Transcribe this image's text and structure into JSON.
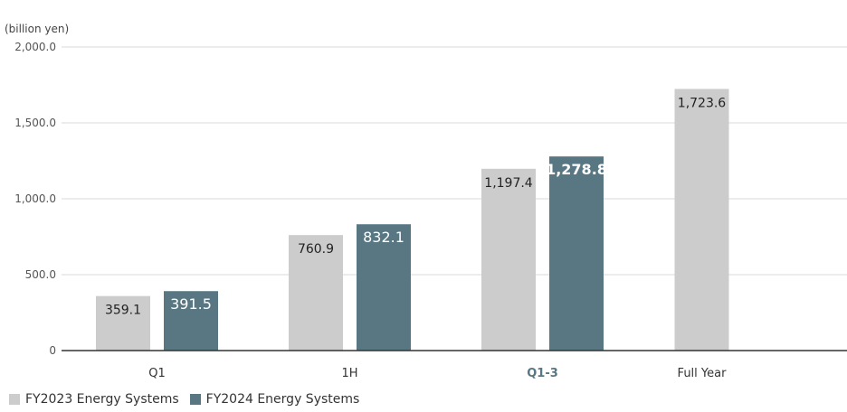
{
  "unit_label": "(billion yen)",
  "colors": {
    "fy2023": "#cccccc",
    "fy2024": "#587782",
    "highlight_text": "#587782",
    "grid": "#d9d9d9",
    "axis": "#333333"
  },
  "legend": [
    {
      "label": "FY2023 Energy Systems",
      "color": "#cccccc"
    },
    {
      "label": "FY2024 Energy Systems",
      "color": "#587782"
    }
  ],
  "chart_data": {
    "type": "bar",
    "categories": [
      "Q1",
      "1H",
      "Q1-3",
      "Full Year"
    ],
    "highlight_category": "Q1-3",
    "series": [
      {
        "name": "FY2023 Energy Systems",
        "values": [
          359.1,
          760.9,
          1197.4,
          1723.6
        ],
        "labels": [
          "359.1",
          "760.9",
          "1,197.4",
          "1,723.6"
        ]
      },
      {
        "name": "FY2024 Energy Systems",
        "values": [
          391.5,
          832.1,
          1278.8,
          null
        ],
        "labels": [
          "391.5",
          "832.1",
          "1,278.8",
          null
        ]
      }
    ],
    "yticks": [
      0,
      500,
      1000,
      1500,
      2000
    ],
    "ytick_labels": [
      "0",
      "500.0",
      "1,000.0",
      "1,500.0",
      "2,000.0"
    ],
    "ylim": [
      0,
      2000
    ],
    "ylabel": "(billion yen)",
    "xlabel": "",
    "grid": true,
    "legend_position": "bottom-left"
  }
}
